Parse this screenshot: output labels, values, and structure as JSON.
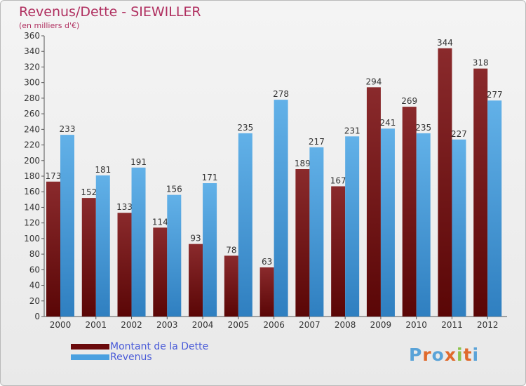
{
  "header": {
    "title": "Revenus/Dette - SIEWILLER",
    "subtitle": "(en milliers d'€)"
  },
  "logo": {
    "text": "Proxiti",
    "letter_colors": [
      "#5aa3d8",
      "#e06a2c",
      "#5aa3d8",
      "#e06a2c",
      "#8bc34a",
      "#e06a2c",
      "#5aa3d8"
    ]
  },
  "chart_data": {
    "type": "bar",
    "categories": [
      "2000",
      "2001",
      "2002",
      "2003",
      "2004",
      "2005",
      "2006",
      "2007",
      "2008",
      "2009",
      "2010",
      "2011",
      "2012"
    ],
    "series": [
      {
        "name": "Montant de la Dette",
        "values": [
          173,
          152,
          133,
          114,
          93,
          78,
          63,
          189,
          167,
          294,
          269,
          344,
          318
        ],
        "color": "#7a1518"
      },
      {
        "name": "Revenus",
        "values": [
          233,
          181,
          191,
          156,
          171,
          235,
          278,
          217,
          231,
          241,
          235,
          227,
          277
        ],
        "color": "#4aa0e0"
      }
    ],
    "title": "Revenus/Dette - SIEWILLER",
    "ylim": [
      0,
      360
    ],
    "yticks": [
      0,
      20,
      40,
      60,
      80,
      100,
      120,
      140,
      160,
      180,
      200,
      220,
      240,
      260,
      280,
      300,
      320,
      340,
      360
    ],
    "grid": false,
    "legend_position": "bottom-left"
  }
}
